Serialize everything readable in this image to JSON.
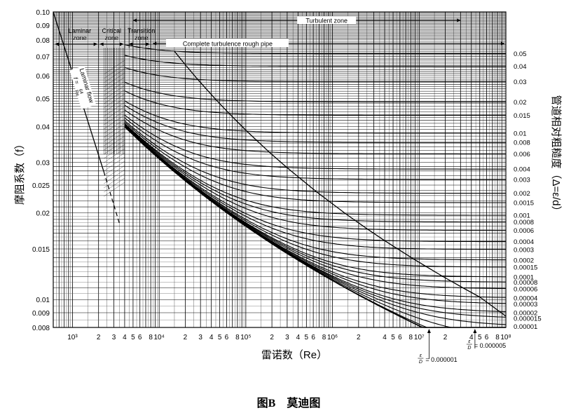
{
  "chart_data": {
    "type": "line",
    "title": "",
    "caption": "图B　莫迪图",
    "xlabel": "雷诺数（Re）",
    "ylabel": "摩阻系数（f）",
    "y2label": "管道相对粗糙度（Δ=ε/d）",
    "x_scale": "log",
    "y_scale": "log",
    "xlim": [
      600,
      100000000
    ],
    "ylim": [
      0.008,
      0.1
    ],
    "grid": true,
    "x_tick_labels": [
      {
        "v": 1000,
        "t": "10³"
      },
      {
        "v": 2000,
        "t": "2"
      },
      {
        "v": 3000,
        "t": "3"
      },
      {
        "v": 4000,
        "t": "4"
      },
      {
        "v": 5000,
        "t": "5"
      },
      {
        "v": 6000,
        "t": "6"
      },
      {
        "v": 8000,
        "t": "8"
      },
      {
        "v": 10000,
        "t": "10⁴"
      },
      {
        "v": 20000,
        "t": "2"
      },
      {
        "v": 30000,
        "t": "3"
      },
      {
        "v": 40000,
        "t": "4"
      },
      {
        "v": 50000,
        "t": "5"
      },
      {
        "v": 60000,
        "t": "6"
      },
      {
        "v": 80000,
        "t": "8"
      },
      {
        "v": 100000,
        "t": "10⁵"
      },
      {
        "v": 200000,
        "t": "2"
      },
      {
        "v": 300000,
        "t": "3"
      },
      {
        "v": 400000,
        "t": "4"
      },
      {
        "v": 500000,
        "t": "5"
      },
      {
        "v": 600000,
        "t": "6"
      },
      {
        "v": 800000,
        "t": "8"
      },
      {
        "v": 1000000,
        "t": "10⁶"
      },
      {
        "v": 2000000,
        "t": "2"
      },
      {
        "v": 4000000,
        "t": "4"
      },
      {
        "v": 5000000,
        "t": "5"
      },
      {
        "v": 6000000,
        "t": "6"
      },
      {
        "v": 8000000,
        "t": "8"
      },
      {
        "v": 10000000,
        "t": "10⁷"
      },
      {
        "v": 20000000,
        "t": "2"
      },
      {
        "v": 40000000,
        "t": "4"
      },
      {
        "v": 50000000,
        "t": "5"
      },
      {
        "v": 60000000,
        "t": "6"
      },
      {
        "v": 80000000,
        "t": "8"
      },
      {
        "v": 100000000,
        "t": "10⁸"
      }
    ],
    "y_tick_labels": [
      "0.10",
      "0.09",
      "0.08",
      "0.07",
      "0.06",
      "0.05",
      "0.04",
      "0.03",
      "0.025",
      "0.02",
      "0.015",
      "0.01",
      "0.009",
      "0.008"
    ],
    "y_tick_values": [
      0.1,
      0.09,
      0.08,
      0.07,
      0.06,
      0.05,
      0.04,
      0.03,
      0.025,
      0.02,
      0.015,
      0.01,
      0.009,
      0.008
    ],
    "roughness_labels": [
      "0.05",
      "0.04",
      "0.03",
      "0.02",
      "0.015",
      "0.01",
      "0.008",
      "0.006",
      "0.004",
      "0.003",
      "0.002",
      "0.0015",
      "0.001",
      "0.0008",
      "0.0006",
      "0.0004",
      "0.0003",
      "0.0002",
      "0.00015",
      "0.0001",
      "0.00008",
      "0.00006",
      "0.00004",
      "0.00003",
      "0.00002",
      "0.000015",
      "0.00001"
    ],
    "roughness_values": [
      0.05,
      0.04,
      0.03,
      0.02,
      0.015,
      0.01,
      0.008,
      0.006,
      0.004,
      0.003,
      0.002,
      0.0015,
      0.001,
      0.0008,
      0.0006,
      0.0004,
      0.0003,
      0.0002,
      0.00015,
      0.0001,
      8e-05,
      6e-05,
      4e-05,
      3e-05,
      2e-05,
      1.5e-05,
      1e-05
    ],
    "extra_curves": [
      {
        "label_num": "ε",
        "label_den": "D",
        "label_val": "= 0.000005",
        "value": 5e-06
      },
      {
        "label_num": "ε",
        "label_den": "D",
        "label_val": "= 0.000001",
        "value": 1e-06
      }
    ],
    "zones": {
      "laminar": "Laminar zone",
      "critical": "Critical zone",
      "transition": "Transition zone",
      "turbulent": "Turbulent zone",
      "complete": "Complete turbulence rough pipe"
    },
    "laminar_flow_label": "Laminar flow",
    "laminar_formula": "f = 64/Re",
    "laminar_formula_lhs": "f =",
    "laminar_formula_num": "64",
    "laminar_formula_den": "Re",
    "laminar_flow_range": [
      600,
      2300
    ],
    "laminar_extension_range": [
      2300,
      3500
    ]
  }
}
